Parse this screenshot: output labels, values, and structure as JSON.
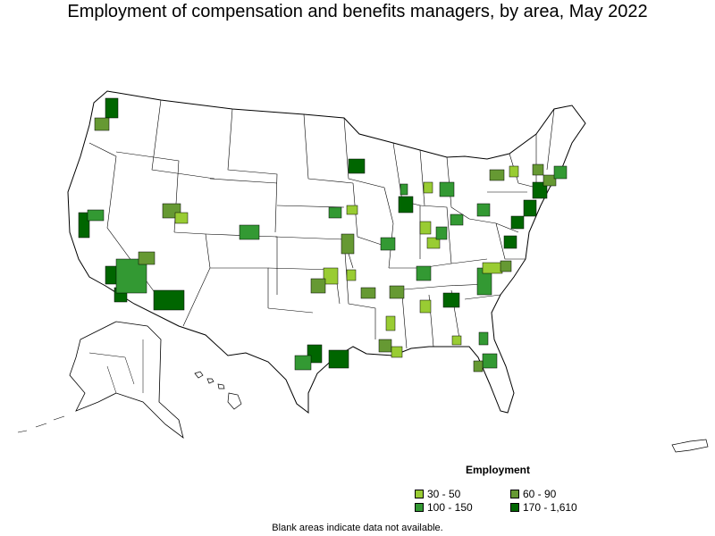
{
  "title": "Employment of compensation and benefits managers, by area, May 2022",
  "legend": {
    "title": "Employment",
    "items": [
      {
        "label": "30 - 50",
        "color": "#99cc33"
      },
      {
        "label": "60 - 90",
        "color": "#669933"
      },
      {
        "label": "100 - 150",
        "color": "#339933"
      },
      {
        "label": "170 - 1,610",
        "color": "#006600"
      }
    ]
  },
  "footnote": "Blank areas indicate data not available.",
  "colors": {
    "outline": "#000000",
    "no_data": "#ffffff"
  }
}
